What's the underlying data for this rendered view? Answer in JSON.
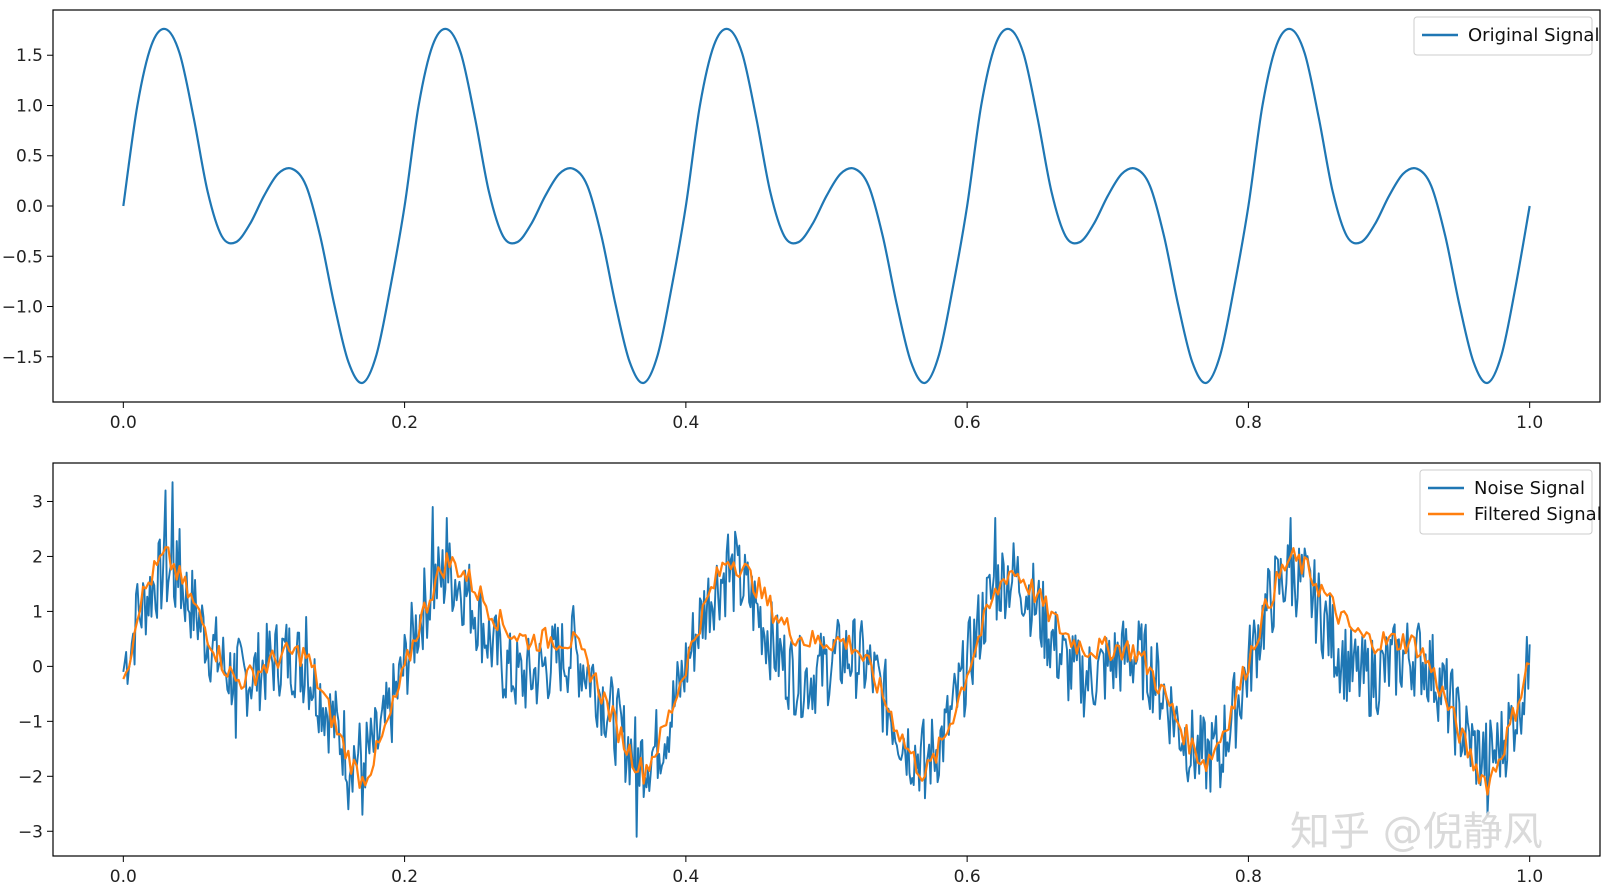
{
  "chart_data": [
    {
      "type": "line",
      "title": "",
      "xlabel": "",
      "ylabel": "",
      "xlim": [
        -0.05,
        1.05
      ],
      "ylim": [
        -1.95,
        1.95
      ],
      "x_ticks": [
        0.0,
        0.2,
        0.4,
        0.6,
        0.8,
        1.0
      ],
      "x_tick_labels": [
        "0.0",
        "0.2",
        "0.4",
        "0.6",
        "0.8",
        "1.0"
      ],
      "y_ticks": [
        1.5,
        1.0,
        0.5,
        0.0,
        -0.5,
        -1.0,
        -1.5
      ],
      "y_tick_labels": [
        "1.5",
        "1.0",
        "0.5",
        "0.0",
        "−0.5",
        "−1.0",
        "−1.5"
      ],
      "grid": false,
      "legend_position": "top-right",
      "series": [
        {
          "name": "Original Signal",
          "color": "#1f77b4",
          "x": [
            0.0,
            0.01,
            0.02,
            0.03,
            0.04,
            0.05,
            0.06,
            0.07,
            0.08,
            0.09,
            0.1,
            0.11,
            0.12,
            0.13,
            0.14,
            0.15,
            0.16,
            0.17,
            0.18,
            0.19,
            0.2
          ],
          "y": [
            0.0,
            1.0,
            1.6,
            1.76,
            1.52,
            0.88,
            0.14,
            -0.3,
            -0.36,
            -0.18,
            0.1,
            0.32,
            0.37,
            0.2,
            -0.3,
            -0.98,
            -1.55,
            -1.76,
            -1.48,
            -0.8,
            0.0
          ],
          "period": 0.2
        }
      ]
    },
    {
      "type": "line",
      "title": "",
      "xlabel": "",
      "ylabel": "",
      "xlim": [
        -0.05,
        1.05
      ],
      "ylim": [
        -3.45,
        3.7
      ],
      "x_ticks": [
        0.0,
        0.2,
        0.4,
        0.6,
        0.8,
        1.0
      ],
      "x_tick_labels": [
        "0.0",
        "0.2",
        "0.4",
        "0.6",
        "0.8",
        "1.0"
      ],
      "y_ticks": [
        3,
        2,
        1,
        0,
        -1,
        -2,
        -3
      ],
      "y_tick_labels": [
        "3",
        "2",
        "1",
        "0",
        "−1",
        "−2",
        "−3"
      ],
      "grid": false,
      "legend_position": "top-right",
      "series": [
        {
          "name": "Noise Signal",
          "color": "#1f77b4",
          "x": [
            0.0,
            0.005,
            0.01,
            0.03,
            0.035,
            0.04,
            0.08,
            0.13,
            0.16,
            0.17,
            0.22,
            0.23,
            0.32,
            0.365,
            0.43,
            0.435,
            0.57,
            0.62,
            0.68,
            0.78,
            0.83,
            0.97,
            1.0
          ],
          "y": [
            -0.1,
            0.1,
            1.5,
            3.2,
            3.35,
            2.5,
            -1.3,
            0.9,
            -2.6,
            -2.7,
            2.9,
            2.7,
            1.1,
            -3.1,
            2.4,
            2.45,
            -2.4,
            2.7,
            0.2,
            -2.2,
            2.7,
            -2.7,
            0.4
          ]
        },
        {
          "name": "Filtered Signal",
          "color": "#ff7f0e",
          "x": [
            0.0,
            0.005,
            0.01,
            0.03,
            0.04,
            0.08,
            0.13,
            0.17,
            0.23,
            0.32,
            0.37,
            0.43,
            0.52,
            0.57,
            0.63,
            0.72,
            0.77,
            0.83,
            0.92,
            0.97,
            1.0
          ],
          "y": [
            -0.1,
            -0.05,
            1.1,
            2.1,
            1.5,
            -0.3,
            0.4,
            -2.2,
            1.9,
            0.6,
            -1.9,
            2.0,
            0.5,
            -2.0,
            1.6,
            0.3,
            -1.6,
            2.0,
            0.5,
            -2.3,
            0.2
          ]
        }
      ]
    }
  ],
  "watermark": {
    "text": "知乎 @倪静风"
  }
}
